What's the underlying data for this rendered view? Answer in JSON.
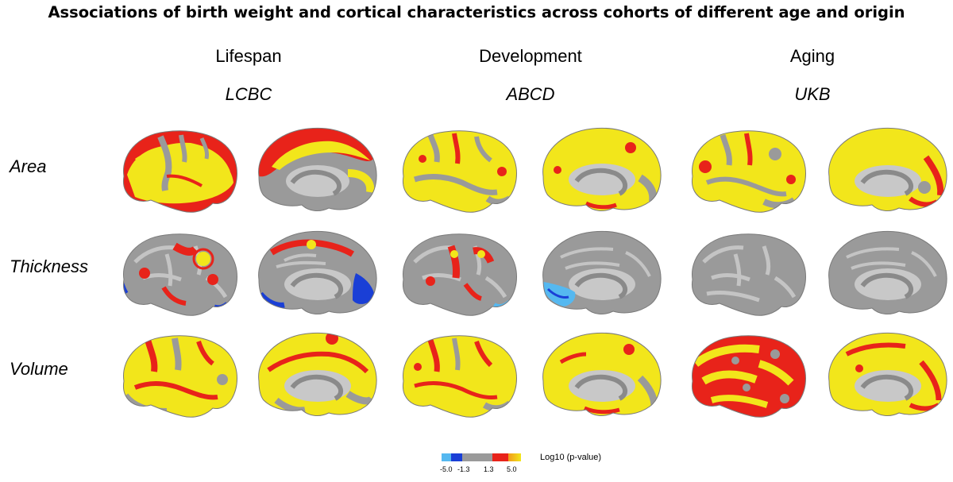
{
  "title": "Associations of birth weight and cortical characteristics across cohorts of different age and origin",
  "columns": [
    {
      "group": "Lifespan",
      "cohort": "LCBC"
    },
    {
      "group": "Development",
      "cohort": "ABCD"
    },
    {
      "group": "Aging",
      "cohort": "UKB"
    }
  ],
  "rows": [
    "Area",
    "Thickness",
    "Volume"
  ],
  "legend": {
    "label": "Log10 (p-value)",
    "ticks": [
      "-5.0",
      "-1.3",
      "1.3",
      "5.0"
    ],
    "colors": {
      "strong_negative": "#1a3fd6",
      "weak_negative": "#55b8f0",
      "nonsignificant": "#9a9a9a",
      "weak_positive": "#e8231a",
      "strong_positive": "#f2e61b"
    }
  },
  "maps": {
    "Area": {
      "LCBC": {
        "lateral": "mostly yellow, red borders",
        "medial": "red-yellow superior, grey core"
      },
      "ABCD": {
        "lateral": "mostly yellow, red patches",
        "medial": "mostly yellow, red patches"
      },
      "UKB": {
        "lateral": "mostly yellow, red patches",
        "medial": "mostly yellow, red patches"
      }
    },
    "Thickness": {
      "LCBC": {
        "lateral": "grey with red-yellow patches, blue occipital",
        "medial": "grey with red patches, blue occipital"
      },
      "ABCD": {
        "lateral": "grey with red-yellow patches",
        "medial": "grey, light-blue frontal-ventral"
      },
      "UKB": {
        "lateral": "grey",
        "medial": "grey"
      }
    },
    "Volume": {
      "LCBC": {
        "lateral": "mostly yellow, red borders",
        "medial": "mostly yellow, red borders"
      },
      "ABCD": {
        "lateral": "mostly yellow, red borders",
        "medial": "mostly yellow, red borders"
      },
      "UKB": {
        "lateral": "yellow-red mix",
        "medial": "yellow-red mix"
      }
    }
  }
}
